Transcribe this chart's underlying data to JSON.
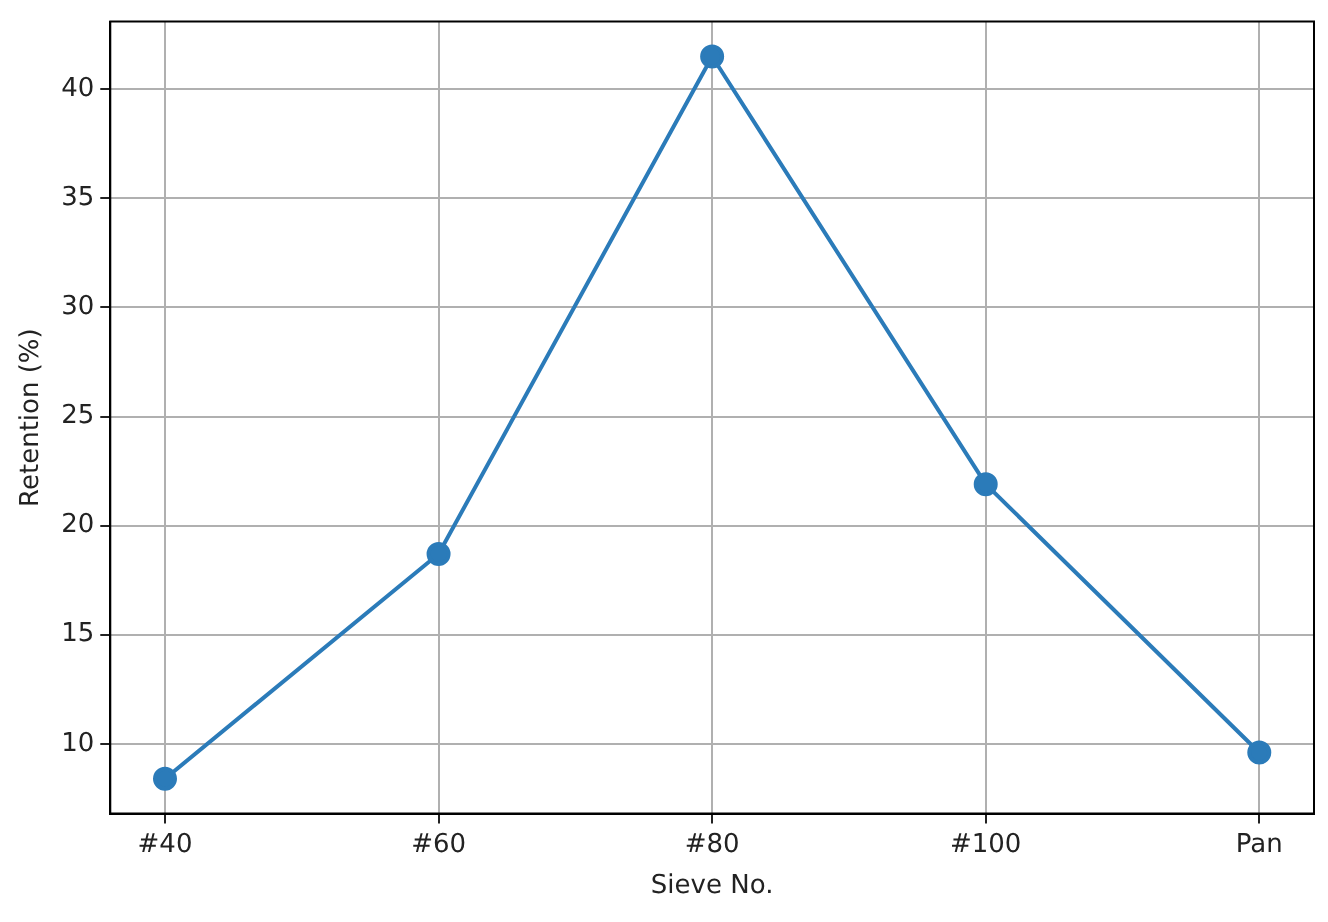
{
  "chart_data": {
    "type": "line",
    "xlabel": "Sieve No.",
    "ylabel": "Retention (%)",
    "categories": [
      "#40",
      "#60",
      "#80",
      "#100",
      "Pan"
    ],
    "series": [
      {
        "color": "#2b7bb9",
        "values": [
          8.4,
          18.7,
          41.5,
          21.9,
          9.6
        ]
      }
    ],
    "ylim": [
      6.8,
      43.1
    ],
    "yticks": [
      10,
      15,
      20,
      25,
      30,
      35,
      40
    ],
    "grid": true,
    "marker": "circle",
    "line_style": "solid",
    "legend": false
  }
}
